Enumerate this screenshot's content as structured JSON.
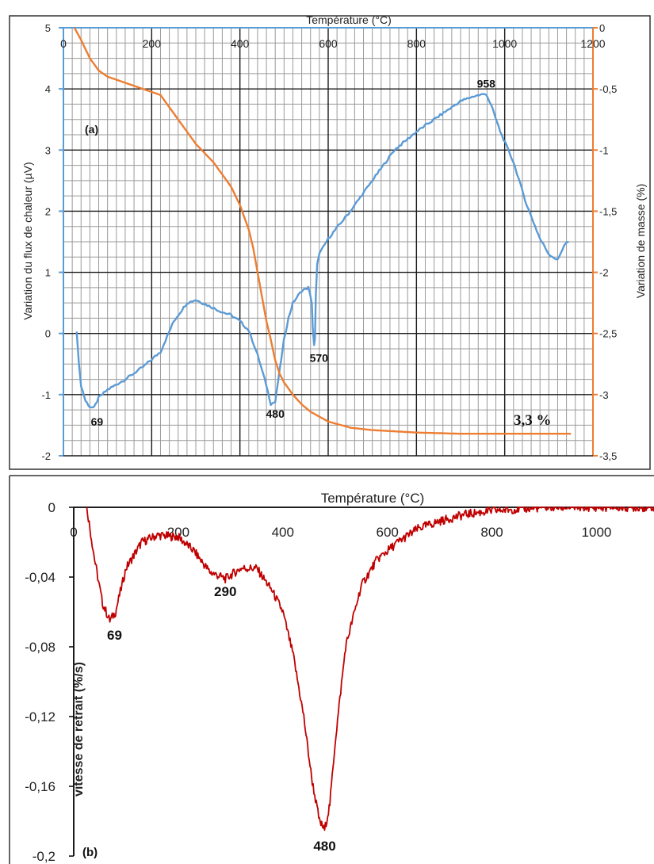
{
  "chart_data": [
    {
      "panel_label": "(a)",
      "type": "line",
      "xlabel": "Température (°C)",
      "ylabel": "Variation du flux de chaleur (µV)",
      "y2label": "Variation de masse (%)",
      "xlim": [
        0,
        1200
      ],
      "ylim": [
        -2,
        5
      ],
      "y2lim": [
        -3.5,
        0
      ],
      "x_ticks": [
        "0",
        "200",
        "400",
        "600",
        "800",
        "1000",
        "1200"
      ],
      "y_ticks": [
        "5",
        "4",
        "3",
        "2",
        "1",
        "0",
        "-1",
        "-2"
      ],
      "y2_ticks": [
        "0",
        "-0,5",
        "-1",
        "-1,5",
        "-2",
        "-2,5",
        "-3",
        "-3,5"
      ],
      "grid": true,
      "series": [
        {
          "axis": "left",
          "color": "#5b9bd5",
          "x": [
            30,
            35,
            40,
            50,
            60,
            69,
            80,
            100,
            140,
            180,
            220,
            250,
            280,
            300,
            330,
            360,
            380,
            400,
            420,
            440,
            460,
            470,
            480,
            490,
            500,
            510,
            520,
            540,
            555,
            563,
            565,
            568,
            570,
            572,
            575,
            580,
            600,
            650,
            700,
            750,
            800,
            850,
            900,
            930,
            958,
            970,
            990,
            1020,
            1050,
            1080,
            1100,
            1120,
            1135,
            1140,
            1145
          ],
          "y": [
            0.05,
            -0.5,
            -0.85,
            -1.1,
            -1.2,
            -1.22,
            -1.05,
            -0.92,
            -0.75,
            -0.55,
            -0.3,
            0.2,
            0.5,
            0.55,
            0.45,
            0.35,
            0.3,
            0.2,
            0.05,
            -0.35,
            -0.85,
            -1.15,
            -1.12,
            -0.6,
            -0.1,
            0.25,
            0.5,
            0.7,
            0.75,
            0.5,
            0.1,
            -0.2,
            -0.1,
            0.6,
            1.15,
            1.3,
            1.55,
            2.0,
            2.5,
            3.0,
            3.3,
            3.55,
            3.8,
            3.88,
            3.92,
            3.72,
            3.3,
            2.8,
            2.1,
            1.55,
            1.3,
            1.2,
            1.45,
            1.48,
            1.5
          ],
          "peaks": [
            {
              "x": 69,
              "label": "69"
            },
            {
              "x": 480,
              "label": "480"
            },
            {
              "x": 570,
              "label": "570"
            },
            {
              "x": 958,
              "label": "958"
            }
          ]
        },
        {
          "axis": "right",
          "color": "#ed7d31",
          "x": [
            25,
            40,
            60,
            80,
            100,
            140,
            180,
            220,
            250,
            300,
            340,
            380,
            400,
            420,
            430,
            440,
            450,
            460,
            470,
            480,
            490,
            500,
            520,
            540,
            560,
            580,
            600,
            650,
            700,
            750,
            800,
            900,
            1000,
            1100,
            1150
          ],
          "y": [
            0,
            -0.1,
            -0.25,
            -0.35,
            -0.4,
            -0.45,
            -0.5,
            -0.55,
            -0.7,
            -0.95,
            -1.1,
            -1.3,
            -1.45,
            -1.65,
            -1.8,
            -2.0,
            -2.2,
            -2.4,
            -2.55,
            -2.72,
            -2.83,
            -2.9,
            -3.0,
            -3.08,
            -3.14,
            -3.18,
            -3.22,
            -3.27,
            -3.29,
            -3.3,
            -3.31,
            -3.32,
            -3.32,
            -3.32,
            -3.32
          ]
        }
      ],
      "annotation": "3,3 %"
    },
    {
      "panel_label": "(b)",
      "type": "line",
      "xlabel": "Température (°C)",
      "ylabel": "vitesse de retrait (%/s)",
      "xlim": [
        0,
        1110
      ],
      "ylim": [
        -0.2,
        0
      ],
      "x_ticks": [
        "0",
        "200",
        "400",
        "600",
        "800",
        "1000"
      ],
      "y_ticks": [
        "0",
        "-0,04",
        "-0,08",
        "-0,12",
        "-0,16",
        "-0,2"
      ],
      "grid": false,
      "series": [
        {
          "color": "#c00000",
          "x": [
            25,
            40,
            55,
            69,
            80,
            100,
            130,
            160,
            200,
            230,
            260,
            290,
            320,
            350,
            380,
            400,
            420,
            440,
            455,
            470,
            480,
            490,
            500,
            520,
            550,
            580,
            620,
            660,
            700,
            750,
            800,
            900,
            1000,
            1110
          ],
          "y": [
            0,
            -0.03,
            -0.055,
            -0.065,
            -0.06,
            -0.035,
            -0.02,
            -0.016,
            -0.017,
            -0.025,
            -0.037,
            -0.041,
            -0.035,
            -0.035,
            -0.048,
            -0.06,
            -0.085,
            -0.12,
            -0.155,
            -0.18,
            -0.185,
            -0.17,
            -0.135,
            -0.08,
            -0.045,
            -0.03,
            -0.02,
            -0.012,
            -0.008,
            -0.004,
            -0.002,
            0,
            0,
            0
          ],
          "peaks": [
            {
              "x": 69,
              "label": "69"
            },
            {
              "x": 290,
              "label": "290"
            },
            {
              "x": 480,
              "label": "480"
            }
          ]
        }
      ]
    }
  ]
}
